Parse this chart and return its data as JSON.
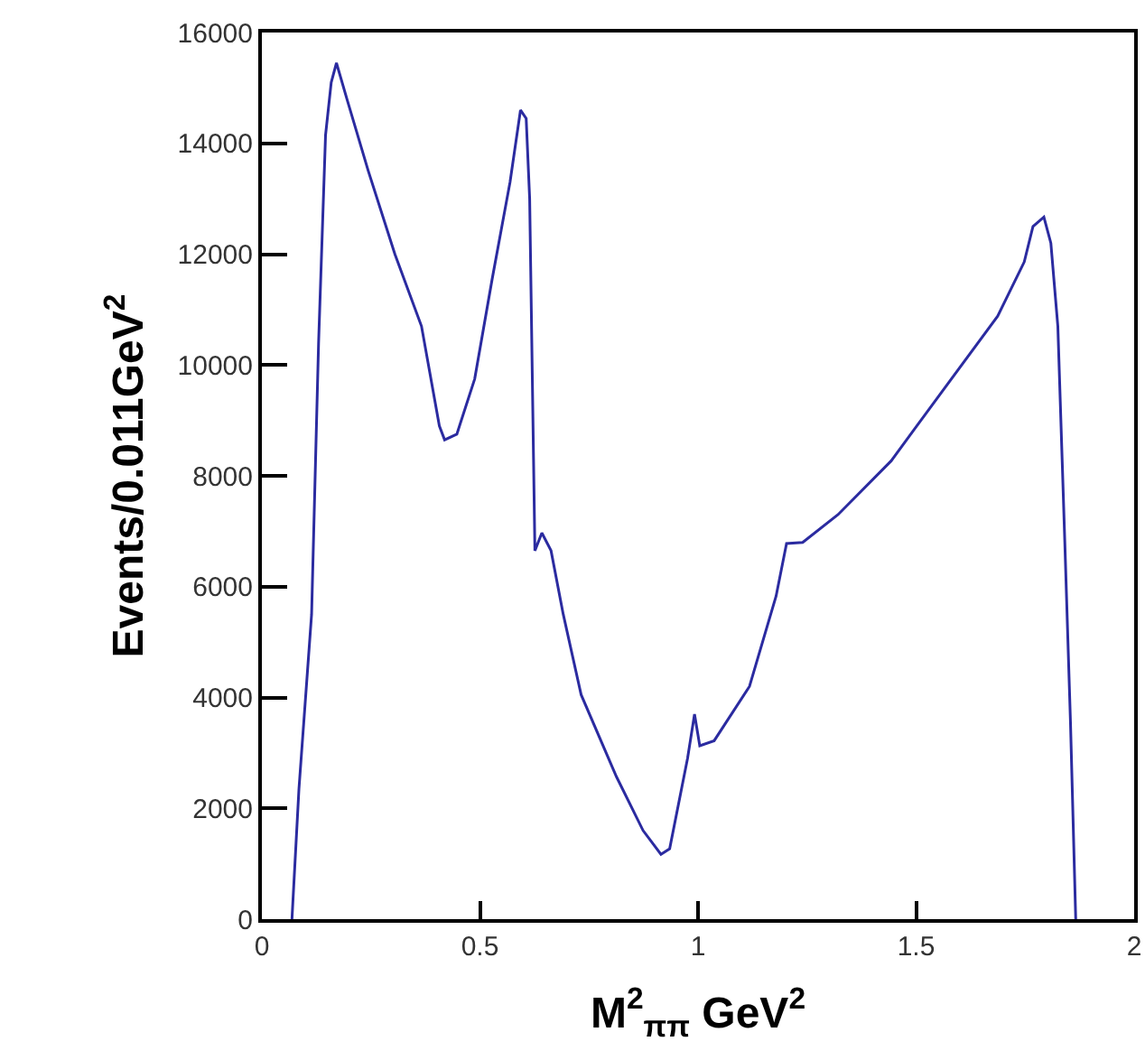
{
  "chart_data": {
    "type": "line",
    "xlabel": "M$^{2}$$_{ππ}$ GeV$^{2}$",
    "ylabel": "Events/0.011GeV$^{2}$",
    "x": [
      0.069,
      0.085,
      0.114,
      0.13,
      0.146,
      0.159,
      0.171,
      0.195,
      0.244,
      0.305,
      0.366,
      0.407,
      0.419,
      0.447,
      0.488,
      0.528,
      0.569,
      0.593,
      0.606,
      0.614,
      0.626,
      0.642,
      0.663,
      0.691,
      0.732,
      0.813,
      0.874,
      0.915,
      0.935,
      0.976,
      0.992,
      1.004,
      1.037,
      1.118,
      1.179,
      1.203,
      1.24,
      1.321,
      1.443,
      1.565,
      1.687,
      1.748,
      1.768,
      1.793,
      1.809,
      1.825,
      1.841,
      1.854,
      1.866
    ],
    "series": [
      {
        "color": "#2b2ba0",
        "values": [
          0,
          2350,
          5500,
          10400,
          14150,
          15100,
          15450,
          14800,
          13500,
          12000,
          10700,
          8900,
          8650,
          8750,
          9750,
          11550,
          13300,
          14600,
          14450,
          13000,
          6650,
          6970,
          6650,
          5500,
          4050,
          2570,
          1600,
          1170,
          1270,
          2900,
          3700,
          3130,
          3220,
          4200,
          5830,
          6780,
          6800,
          7300,
          8270,
          9580,
          10880,
          11860,
          12500,
          12670,
          12200,
          10700,
          6800,
          3550,
          0
        ]
      }
    ],
    "xlim": [
      0,
      2
    ],
    "xticks": [
      0,
      0.5,
      1,
      1.5,
      2
    ],
    "ylim": [
      0,
      16000
    ],
    "yticks": [
      0,
      2000,
      4000,
      6000,
      8000,
      10000,
      12000,
      14000,
      16000
    ],
    "grid": false,
    "marker": "none",
    "line_style": "solid"
  }
}
